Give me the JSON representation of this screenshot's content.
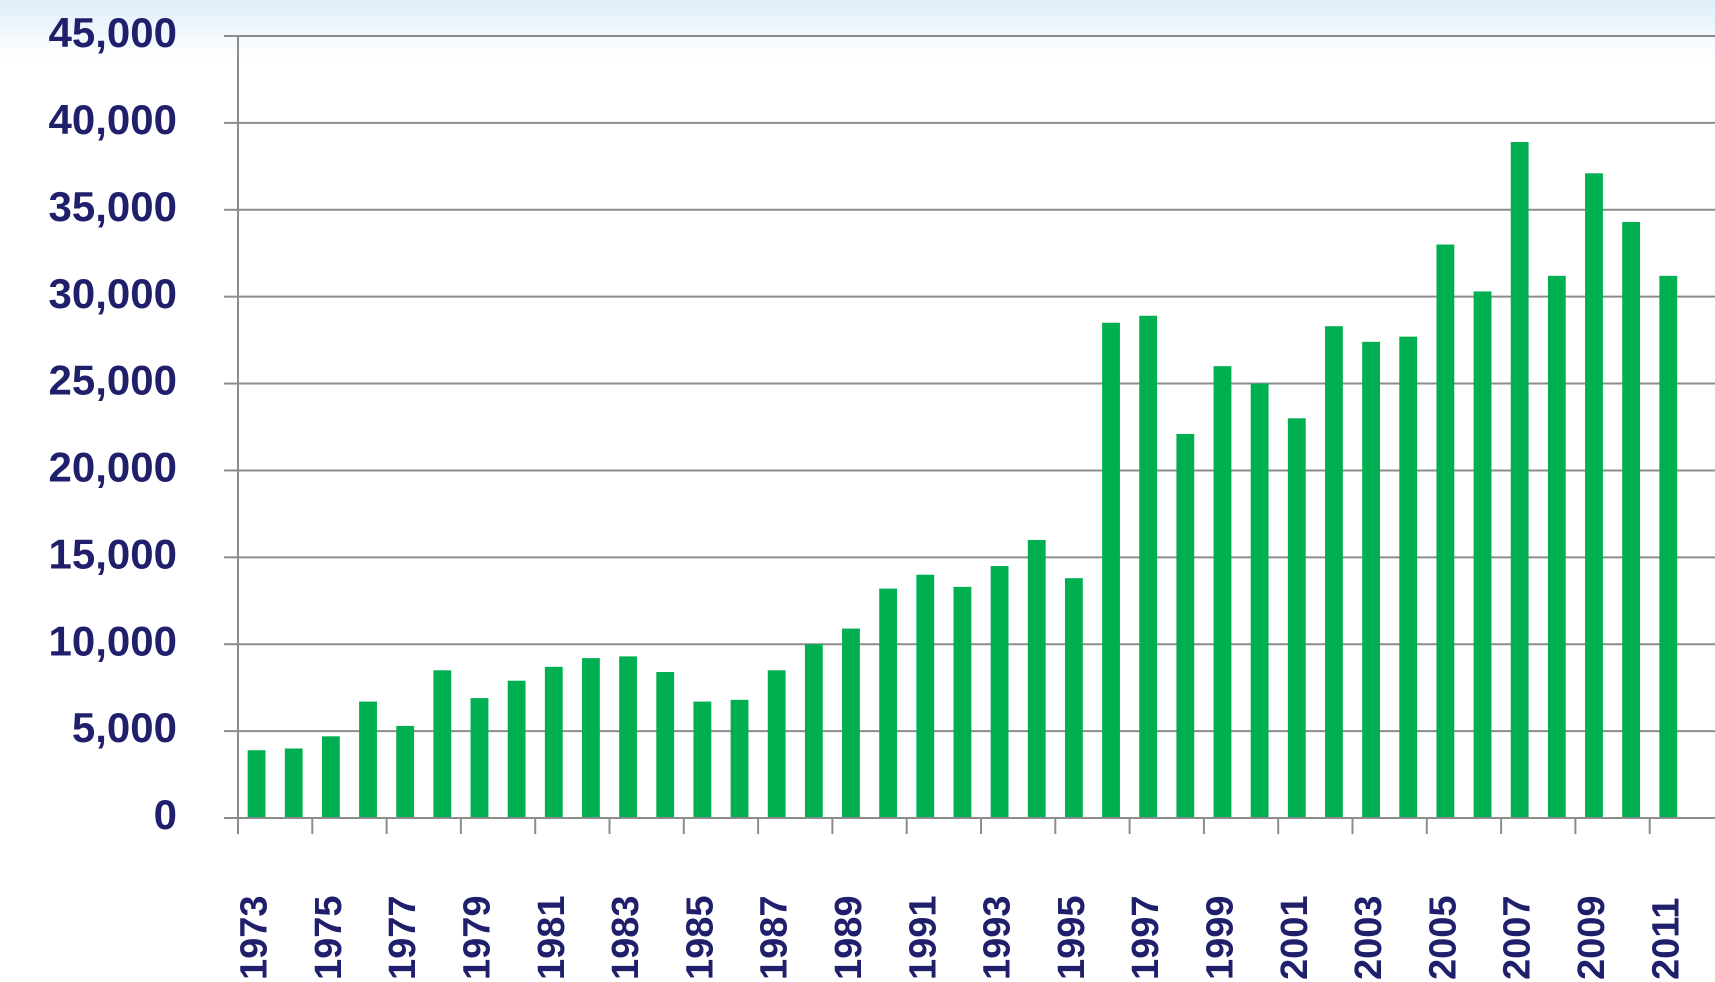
{
  "chart_data": {
    "type": "bar",
    "categories": [
      "1973",
      null,
      "1975",
      null,
      "1977",
      null,
      "1979",
      null,
      "1981",
      null,
      "1983",
      null,
      "1985",
      null,
      "1987",
      null,
      "1989",
      null,
      "1991",
      null,
      "1993",
      null,
      "1995",
      null,
      "1997",
      null,
      "1999",
      null,
      "2001",
      null,
      "2003",
      null,
      "2005",
      null,
      "2007",
      null,
      "2009",
      null,
      "2011"
    ],
    "values": [
      3900,
      4000,
      4700,
      6700,
      5300,
      8500,
      6900,
      7900,
      8700,
      9200,
      9300,
      8400,
      6700,
      6800,
      8500,
      10000,
      10900,
      13200,
      14000,
      13300,
      14500,
      16000,
      13800,
      28500,
      28900,
      22100,
      26000,
      25000,
      23000,
      28300,
      27400,
      27700,
      33000,
      30300,
      38900,
      31200,
      37100,
      34300,
      31200
    ],
    "color": "#00b050",
    "ylim": [
      0,
      45000
    ],
    "yticks": [
      0,
      {
        "value": 5000,
        "label": "5,000"
      },
      {
        "value": 10000,
        "label": "10,000"
      },
      {
        "value": 15000,
        "label": "15,000"
      },
      {
        "value": 20000,
        "label": "20,000"
      },
      {
        "value": 25000,
        "label": "25,000"
      },
      {
        "value": 30000,
        "label": "30,000"
      },
      {
        "value": 35000,
        "label": "35,000"
      },
      {
        "value": 40000,
        "label": "40,000"
      },
      {
        "value": 45000,
        "label": "45,000"
      }
    ],
    "grid": true
  }
}
